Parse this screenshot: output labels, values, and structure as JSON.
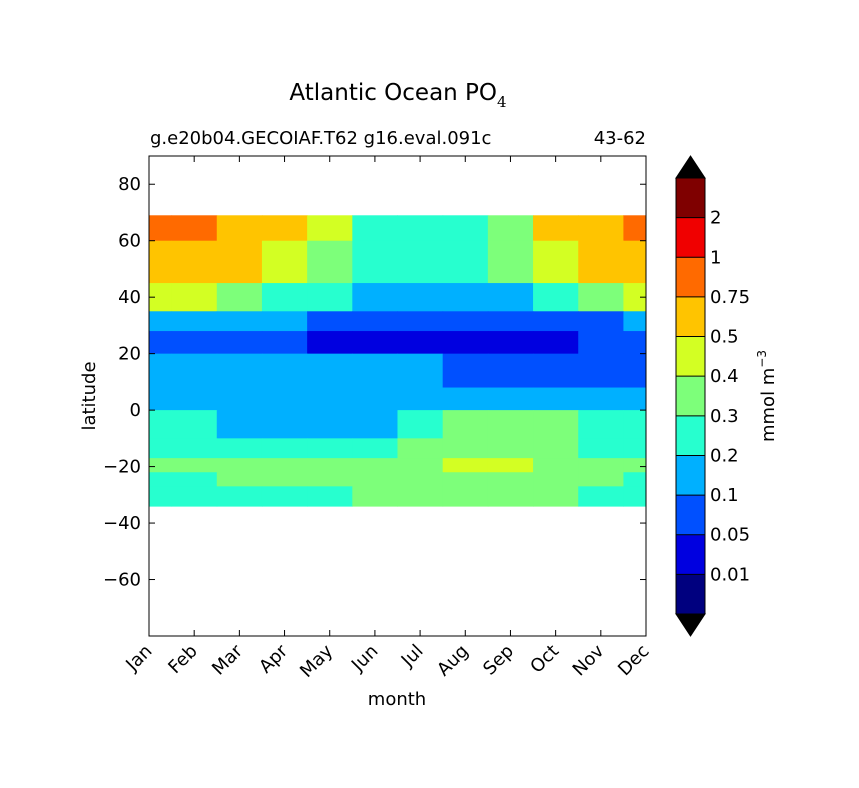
{
  "chart_data": {
    "type": "heatmap",
    "title_main": "Atlantic Ocean PO",
    "title_sub": "4",
    "subtitle_left": "g.e20b04.GECOIAF.T62 g16.eval.091c",
    "subtitle_right": "43-62",
    "xlabel": "month",
    "ylabel": "latitude",
    "x_categories": [
      "Jan",
      "Feb",
      "Mar",
      "Apr",
      "May",
      "Jun",
      "Jul",
      "Aug",
      "Sep",
      "Oct",
      "Nov",
      "Dec"
    ],
    "ylim": [
      -80,
      90
    ],
    "y_ticks": [
      "80",
      "60",
      "40",
      "20",
      "0",
      "−20",
      "−40",
      "−60"
    ],
    "y_tick_values": [
      80,
      60,
      40,
      20,
      0,
      -20,
      -40,
      -60
    ],
    "data_lat_range": [
      -34,
      69
    ],
    "colorbar": {
      "label_main": "mmol m",
      "label_exp": "−3",
      "levels": [
        "0.01",
        "0.05",
        "0.1",
        "0.2",
        "0.3",
        "0.4",
        "0.5",
        "0.75",
        "1",
        "2"
      ],
      "colors": [
        "#00007f",
        "#0000e0",
        "#0050ff",
        "#00b0ff",
        "#27ffcf",
        "#7dff7a",
        "#d3ff23",
        "#ffc400",
        "#ff6a00",
        "#f00000",
        "#7f0000"
      ],
      "extend": "both"
    },
    "bands": [
      {
        "lat_min": 60,
        "lat_max": 69,
        "values": [
          0.8,
          0.8,
          0.7,
          0.5,
          0.4,
          0.25,
          0.22,
          0.22,
          0.35,
          0.5,
          0.7,
          0.8
        ]
      },
      {
        "lat_min": 45,
        "lat_max": 60,
        "values": [
          0.6,
          0.6,
          0.55,
          0.45,
          0.35,
          0.25,
          0.22,
          0.22,
          0.3,
          0.4,
          0.5,
          0.55
        ]
      },
      {
        "lat_min": 35,
        "lat_max": 45,
        "values": [
          0.45,
          0.4,
          0.35,
          0.25,
          0.2,
          0.15,
          0.15,
          0.15,
          0.15,
          0.2,
          0.3,
          0.4
        ]
      },
      {
        "lat_min": 28,
        "lat_max": 35,
        "values": [
          0.12,
          0.12,
          0.12,
          0.12,
          0.08,
          0.07,
          0.07,
          0.06,
          0.06,
          0.07,
          0.09,
          0.1
        ]
      },
      {
        "lat_min": 20,
        "lat_max": 28,
        "values": [
          0.07,
          0.07,
          0.07,
          0.06,
          0.04,
          0.03,
          0.03,
          0.03,
          0.03,
          0.04,
          0.06,
          0.07
        ]
      },
      {
        "lat_min": 8,
        "lat_max": 20,
        "values": [
          0.15,
          0.15,
          0.15,
          0.15,
          0.15,
          0.12,
          0.1,
          0.08,
          0.08,
          0.08,
          0.08,
          0.08
        ]
      },
      {
        "lat_min": 0,
        "lat_max": 8,
        "values": [
          0.15,
          0.15,
          0.15,
          0.15,
          0.15,
          0.15,
          0.15,
          0.15,
          0.15,
          0.15,
          0.15,
          0.12
        ]
      },
      {
        "lat_min": -10,
        "lat_max": 0,
        "values": [
          0.25,
          0.22,
          0.15,
          0.15,
          0.15,
          0.15,
          0.25,
          0.35,
          0.35,
          0.35,
          0.25,
          0.25
        ]
      },
      {
        "lat_min": -17,
        "lat_max": -10,
        "values": [
          0.25,
          0.25,
          0.25,
          0.25,
          0.25,
          0.25,
          0.3,
          0.35,
          0.35,
          0.3,
          0.25,
          0.25
        ]
      },
      {
        "lat_min": -22,
        "lat_max": -17,
        "values": [
          0.35,
          0.35,
          0.35,
          0.35,
          0.35,
          0.35,
          0.35,
          0.45,
          0.45,
          0.35,
          0.35,
          0.35
        ]
      },
      {
        "lat_min": -27,
        "lat_max": -22,
        "values": [
          0.25,
          0.25,
          0.3,
          0.35,
          0.35,
          0.35,
          0.35,
          0.35,
          0.35,
          0.35,
          0.3,
          0.25
        ]
      },
      {
        "lat_min": -34,
        "lat_max": -27,
        "values": [
          0.25,
          0.25,
          0.25,
          0.25,
          0.25,
          0.35,
          0.35,
          0.35,
          0.35,
          0.3,
          0.25,
          0.25
        ]
      }
    ]
  }
}
